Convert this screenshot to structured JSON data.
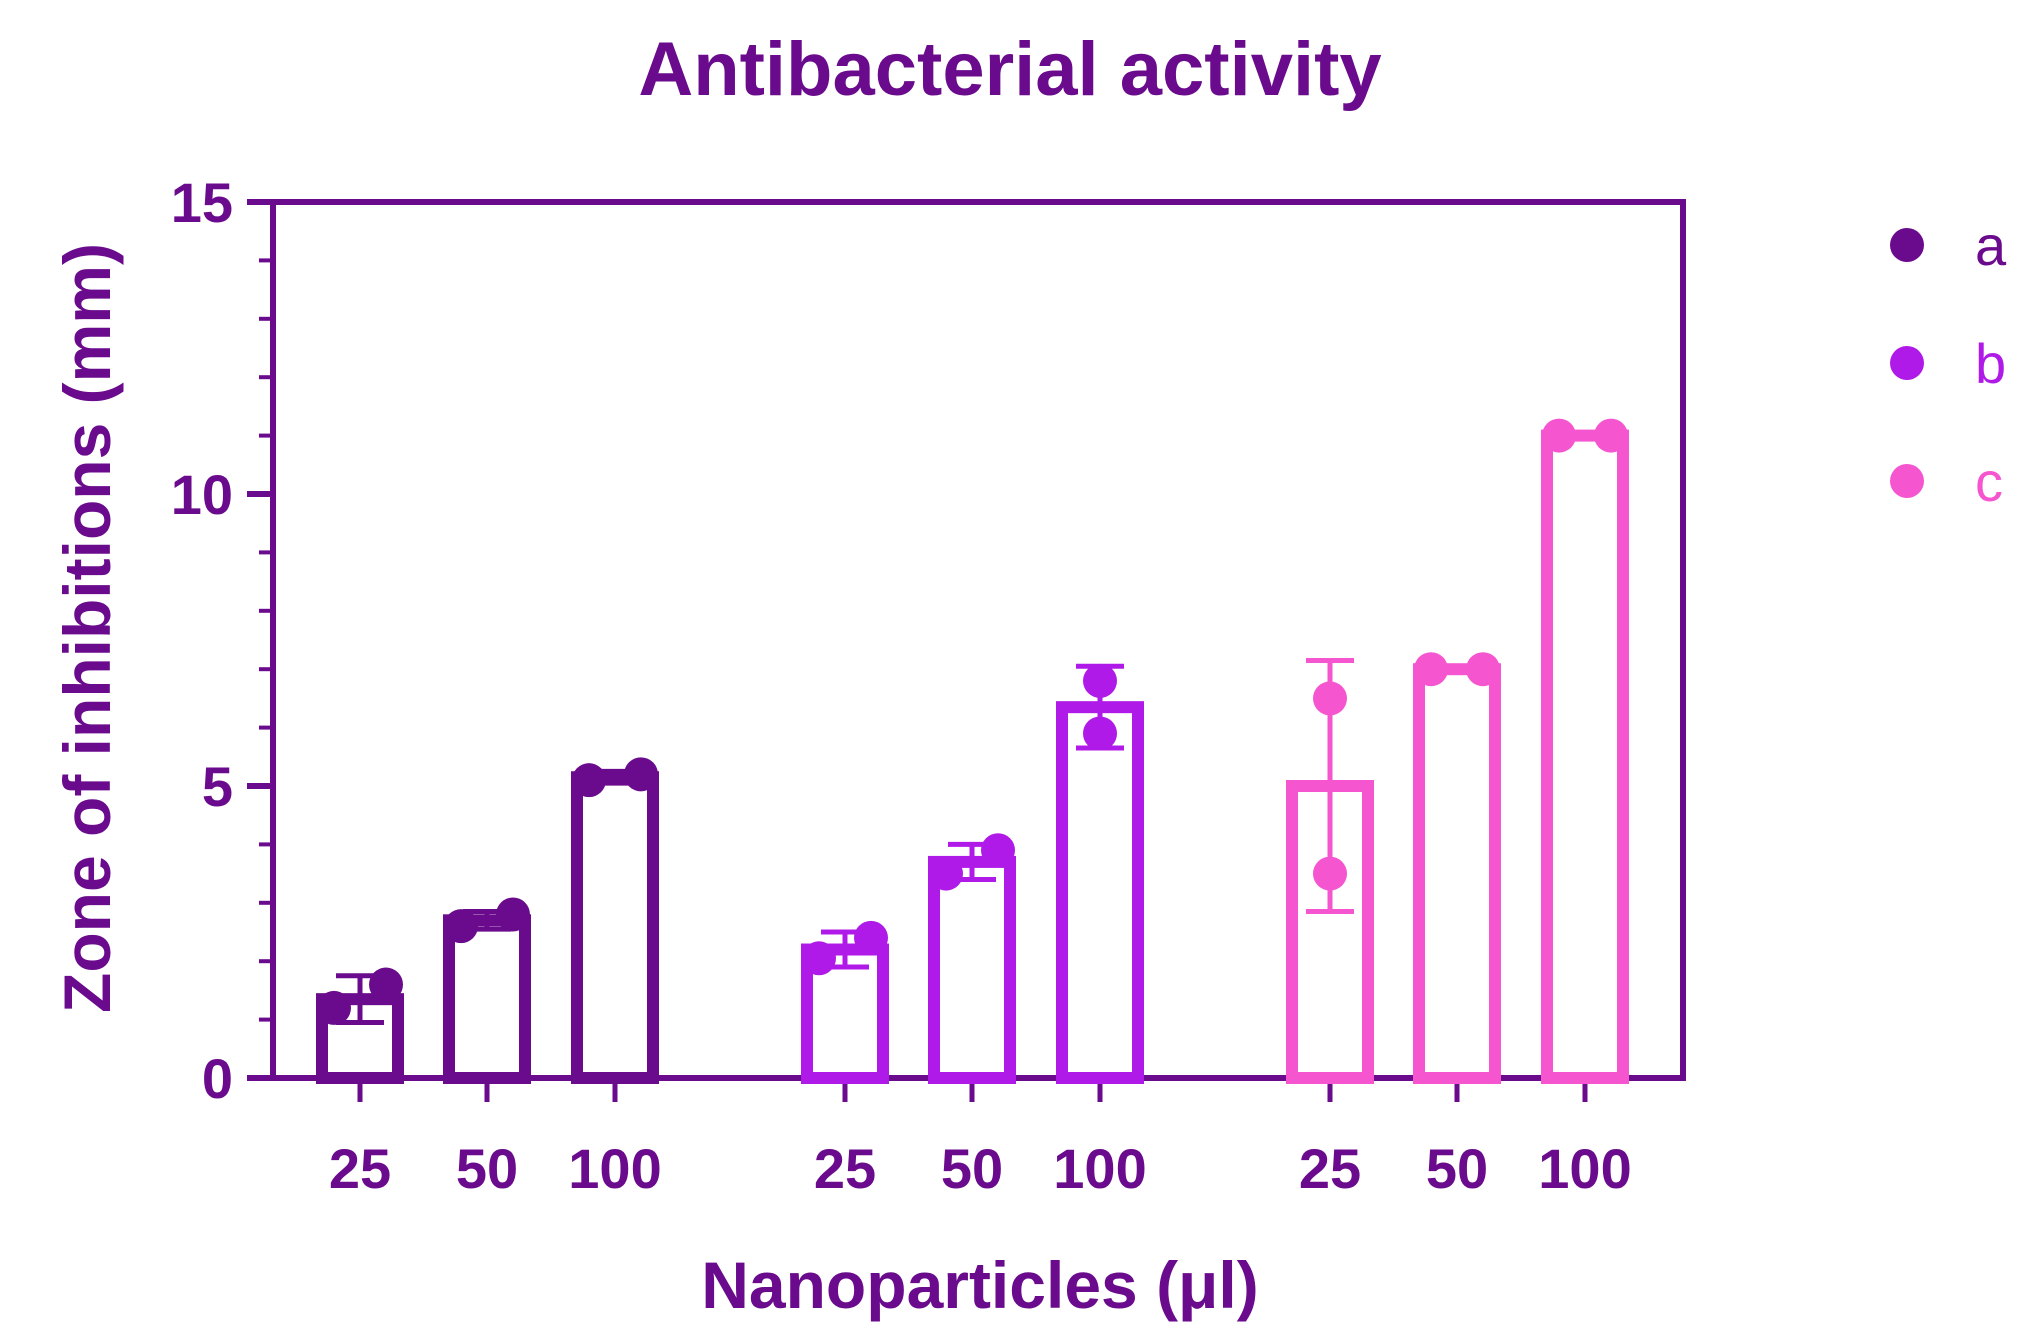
{
  "chart_data": {
    "type": "bar",
    "title": "Antibacterial activity",
    "xlabel": "Nanoparticles (μl)",
    "ylabel": "Zone of inhibitions (mm)",
    "ylim": [
      0,
      15
    ],
    "yticks": [
      0,
      5,
      10,
      15
    ],
    "categories": [
      "25",
      "50",
      "100"
    ],
    "legend_position": "right",
    "series": [
      {
        "name": "a",
        "color": "#6a0a8c",
        "values": [
          1.35,
          2.7,
          5.15
        ],
        "errors": [
          0.4,
          0.15,
          0.1
        ],
        "points": [
          [
            1.2,
            1.6
          ],
          [
            2.6,
            2.8
          ],
          [
            5.1,
            5.2
          ]
        ]
      },
      {
        "name": "b",
        "color": "#b01ae8",
        "values": [
          2.2,
          3.7,
          6.35
        ],
        "errors": [
          0.3,
          0.3,
          0.7
        ],
        "points": [
          [
            2.05,
            2.4
          ],
          [
            3.5,
            3.9
          ],
          [
            5.9,
            6.8
          ]
        ]
      },
      {
        "name": "c",
        "color": "#f556d0",
        "values": [
          5.0,
          7.0,
          11.0
        ],
        "errors": [
          2.15,
          0.05,
          0.05
        ],
        "points": [
          [
            3.5,
            6.5
          ],
          [
            7.0,
            7.0
          ],
          [
            11.0,
            11.0
          ]
        ]
      }
    ]
  }
}
